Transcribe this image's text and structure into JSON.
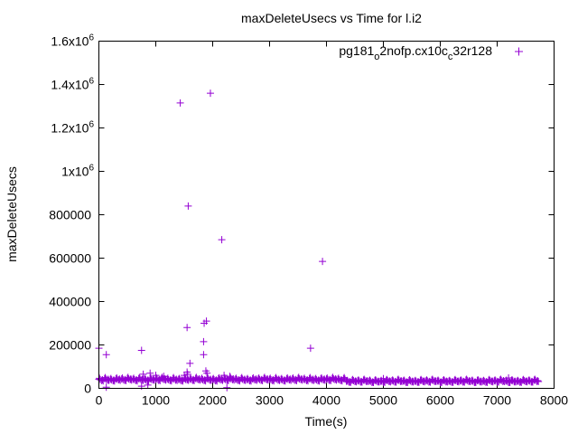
{
  "chart_data": {
    "type": "scatter",
    "title": "maxDeleteUsecs vs Time for l.i2",
    "xlabel": "Time(s)",
    "ylabel": "maxDeleteUsecs",
    "xlim": [
      0,
      8000
    ],
    "ylim": [
      0,
      1600000
    ],
    "xticks": [
      0,
      1000,
      2000,
      3000,
      4000,
      5000,
      6000,
      7000,
      8000
    ],
    "yticks": [
      {
        "value": 0,
        "label": "0"
      },
      {
        "value": 200000,
        "label": "200000"
      },
      {
        "value": 400000,
        "label": "400000"
      },
      {
        "value": 600000,
        "label": "600000"
      },
      {
        "value": 800000,
        "label": "800000"
      },
      {
        "value": 1000000,
        "label": "1x10",
        "exp": "6"
      },
      {
        "value": 1200000,
        "label": "1.2x10",
        "exp": "6"
      },
      {
        "value": 1400000,
        "label": "1.4x10",
        "exp": "6"
      },
      {
        "value": 1600000,
        "label": "1.6x10",
        "exp": "6"
      }
    ],
    "grid": false,
    "legend_position": "top-right",
    "series": [
      {
        "name": "pg181_o2nofp.cx10c_c32r128",
        "legend": {
          "a": "pg181",
          "sub1": "o",
          "b": "2nofp.cx10c",
          "sub2": "c",
          "c": "32r128"
        },
        "color": "#9400d3",
        "baseline_x_start": 0,
        "baseline_x_step": 50,
        "baseline_y": [
          42000,
          36000,
          45000,
          38000,
          41000,
          35000,
          44000,
          39000,
          43000,
          37000,
          46000,
          40000,
          42000,
          36000,
          45000,
          38000,
          41000,
          35000,
          44000,
          39000,
          43000,
          37000,
          46000,
          40000,
          42000,
          36000,
          45000,
          38000,
          41000,
          35000,
          44000,
          39000,
          43000,
          37000,
          46000,
          40000,
          42000,
          36000,
          45000,
          38000,
          41000,
          35000,
          44000,
          39000,
          43000,
          37000,
          46000,
          40000,
          42000,
          36000,
          45000,
          38000,
          41000,
          35000,
          44000,
          39000,
          43000,
          37000,
          46000,
          40000,
          42000,
          36000,
          45000,
          38000,
          41000,
          35000,
          44000,
          39000,
          43000,
          37000,
          46000,
          40000,
          42000,
          36000,
          45000,
          38000,
          41000,
          35000,
          44000,
          39000,
          43000,
          37000,
          46000,
          40000,
          42000,
          36000,
          45000,
          33000,
          28000,
          37000,
          31000,
          35000,
          29000,
          38000,
          32000,
          34000,
          27000,
          36000,
          30000,
          33000,
          28000,
          37000,
          31000,
          35000,
          29000,
          38000,
          32000,
          34000,
          27000,
          36000,
          30000,
          33000,
          28000,
          37000,
          31000,
          35000,
          29000,
          38000,
          32000,
          34000,
          27000,
          36000,
          30000,
          33000,
          28000,
          37000,
          31000,
          35000,
          29000,
          38000,
          32000,
          34000,
          27000,
          36000,
          30000,
          33000,
          28000,
          37000,
          31000,
          35000,
          29000,
          38000,
          32000,
          34000,
          27000,
          36000,
          30000,
          33000,
          28000,
          37000,
          31000,
          35000,
          29000,
          38000,
          32000
        ],
        "points": [
          [
            0,
            185000
          ],
          [
            130,
            155000
          ],
          [
            750,
            175000
          ],
          [
            1430,
            1315000
          ],
          [
            1570,
            840000
          ],
          [
            1550,
            280000
          ],
          [
            1600,
            115000
          ],
          [
            1850,
            300000
          ],
          [
            1890,
            310000
          ],
          [
            1960,
            1360000
          ],
          [
            2160,
            685000
          ],
          [
            1840,
            215000
          ],
          [
            1840,
            155000
          ],
          [
            3720,
            185000
          ],
          [
            3930,
            585000
          ],
          [
            1550,
            75000
          ],
          [
            1560,
            65000
          ],
          [
            1880,
            80000
          ],
          [
            1900,
            70000
          ],
          [
            780,
            65000
          ],
          [
            900,
            70000
          ],
          [
            1000,
            60000
          ],
          [
            2200,
            60000
          ],
          [
            2300,
            55000
          ],
          [
            130,
            5000
          ],
          [
            750,
            10000
          ],
          [
            860,
            15000
          ],
          [
            2250,
            3000
          ],
          [
            1500,
            60000
          ],
          [
            1140,
            55000
          ],
          [
            5000,
            45000
          ],
          [
            7200,
            48000
          ]
        ]
      }
    ]
  }
}
